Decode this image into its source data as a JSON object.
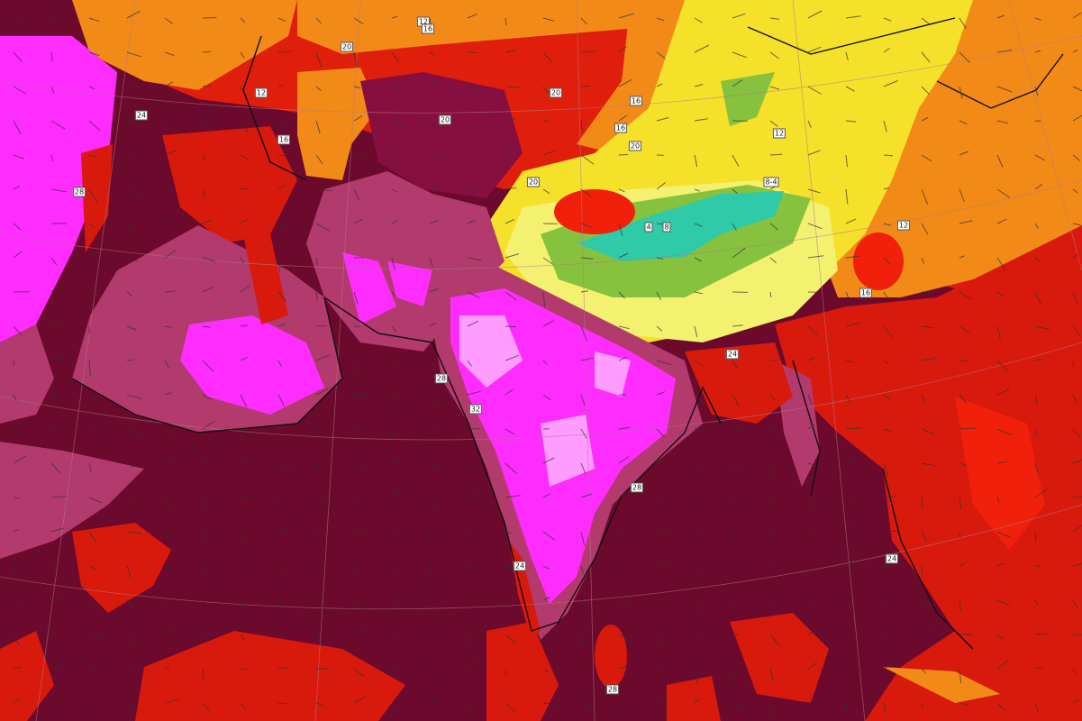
{
  "map": {
    "variable": "temperature",
    "region": "South Asia, Middle East and Central Asia",
    "colors": {
      "ocean": "#6b0a2c",
      "dark_plum": "#860f40",
      "mauve": "#b23a6c",
      "magenta": "#ff2cff",
      "light_pink": "#ff9cff",
      "red": "#d81a0c",
      "bright_red": "#f0200a",
      "orange": "#f28a18",
      "yellow": "#f5e02a",
      "pale_yellow": "#f4f070",
      "green": "#86c23e",
      "teal": "#2fcaa8",
      "coastline": "#111111",
      "graticule": "#b07a8a"
    },
    "overlays": [
      "wind-arrows",
      "contour-lines",
      "coastlines",
      "graticule"
    ]
  },
  "contour_labels": [
    "12",
    "16",
    "20",
    "12",
    "16",
    "20",
    "20",
    "16",
    "16",
    "20",
    "20",
    "12",
    "8-4",
    "4",
    "8",
    "12",
    "16",
    "24",
    "28",
    "24",
    "28",
    "32",
    "28",
    "24",
    "28",
    "24"
  ]
}
